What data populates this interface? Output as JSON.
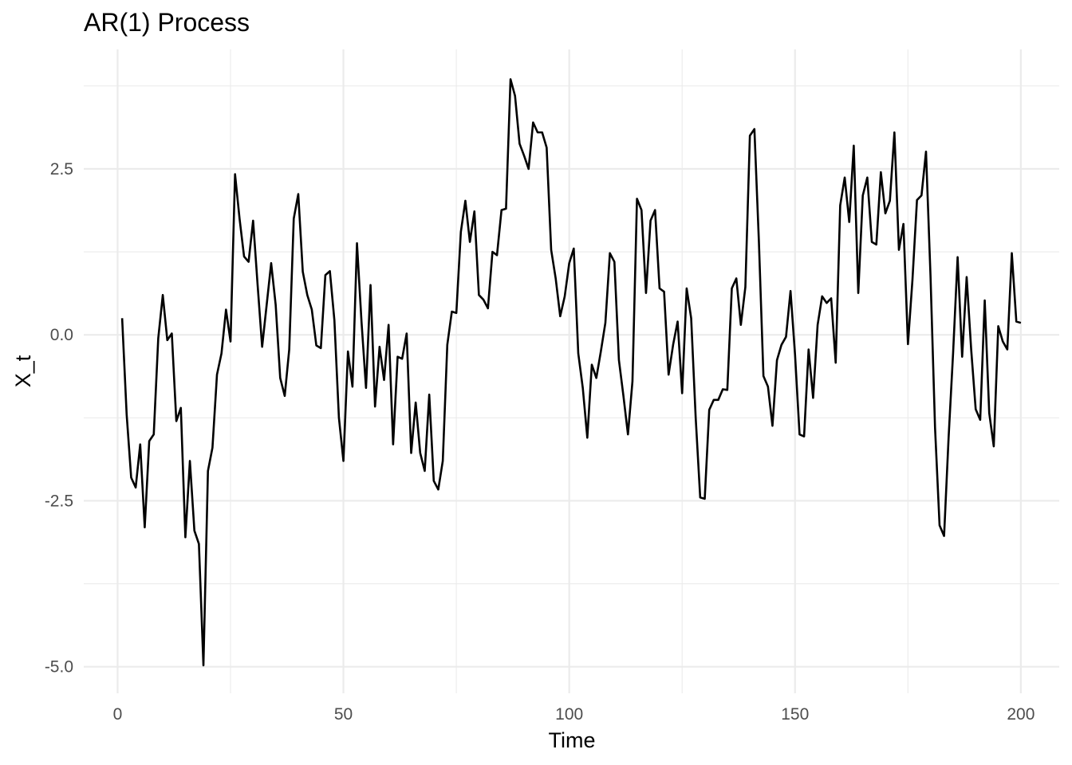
{
  "chart_data": {
    "type": "line",
    "title": "AR(1) Process",
    "xlabel": "Time",
    "ylabel": "X_t",
    "xlim": [
      -7.5,
      208.5
    ],
    "ylim": [
      -5.4,
      4.3
    ],
    "grid": true,
    "x_ticks": [
      0,
      50,
      100,
      150,
      200
    ],
    "x_tick_labels": [
      "0",
      "50",
      "100",
      "150",
      "200"
    ],
    "x_minor_ticks": [
      25,
      75,
      125,
      175
    ],
    "y_ticks": [
      -5.0,
      -2.5,
      0.0,
      2.5
    ],
    "y_tick_labels": [
      "-5.0",
      "-2.5",
      "0.0",
      "2.5"
    ],
    "y_minor_ticks": [
      -3.75,
      -1.25,
      1.25,
      3.75
    ],
    "series": [
      {
        "color": "#000000",
        "x": [
          1,
          2,
          3,
          4,
          5,
          6,
          7,
          8,
          9,
          10,
          11,
          12,
          13,
          14,
          15,
          16,
          17,
          18,
          19,
          20,
          21,
          22,
          23,
          24,
          25,
          26,
          27,
          28,
          29,
          30,
          31,
          32,
          33,
          34,
          35,
          36,
          37,
          38,
          39,
          40,
          41,
          42,
          43,
          44,
          45,
          46,
          47,
          48,
          49,
          50,
          51,
          52,
          53,
          54,
          55,
          56,
          57,
          58,
          59,
          60,
          61,
          62,
          63,
          64,
          65,
          66,
          67,
          68,
          69,
          70,
          71,
          72,
          73,
          74,
          75,
          76,
          77,
          78,
          79,
          80,
          81,
          82,
          83,
          84,
          85,
          86,
          87,
          88,
          89,
          90,
          91,
          92,
          93,
          94,
          95,
          96,
          97,
          98,
          99,
          100,
          101,
          102,
          103,
          104,
          105,
          106,
          107,
          108,
          109,
          110,
          111,
          112,
          113,
          114,
          115,
          116,
          117,
          118,
          119,
          120,
          121,
          122,
          123,
          124,
          125,
          126,
          127,
          128,
          129,
          130,
          131,
          132,
          133,
          134,
          135,
          136,
          137,
          138,
          139,
          140,
          141,
          142,
          143,
          144,
          145,
          146,
          147,
          148,
          149,
          150,
          151,
          152,
          153,
          154,
          155,
          156,
          157,
          158,
          159,
          160,
          161,
          162,
          163,
          164,
          165,
          166,
          167,
          168,
          169,
          170,
          171,
          172,
          173,
          174,
          175,
          176,
          177,
          178,
          179,
          180,
          181,
          182,
          183,
          184,
          185,
          186,
          187,
          188,
          189,
          190,
          191,
          192,
          193,
          194,
          195,
          196,
          197,
          198,
          199,
          200
        ],
        "values": [
          0.25,
          -1.2,
          -2.15,
          -2.3,
          -1.65,
          -2.9,
          -1.6,
          -1.5,
          -0.05,
          0.6,
          -0.08,
          0.02,
          -1.3,
          -1.1,
          -3.05,
          -1.9,
          -2.95,
          -3.15,
          -4.98,
          -2.05,
          -1.7,
          -0.6,
          -0.28,
          0.38,
          -0.1,
          2.42,
          1.75,
          1.18,
          1.1,
          1.72,
          0.75,
          -0.18,
          0.45,
          1.08,
          0.45,
          -0.65,
          -0.92,
          -0.22,
          1.75,
          2.12,
          0.95,
          0.6,
          0.38,
          -0.16,
          -0.2,
          0.9,
          0.96,
          0.22,
          -1.25,
          -1.9,
          -0.25,
          -0.78,
          1.38,
          0.2,
          -0.8,
          0.75,
          -1.08,
          -0.18,
          -0.68,
          0.15,
          -1.65,
          -0.33,
          -0.36,
          0.02,
          -1.78,
          -1.02,
          -1.78,
          -2.05,
          -0.9,
          -2.2,
          -2.33,
          -1.9,
          -0.15,
          0.35,
          0.33,
          1.55,
          2.02,
          1.4,
          1.86,
          0.6,
          0.53,
          0.4,
          1.25,
          1.2,
          1.88,
          1.9,
          3.85,
          3.6,
          2.88,
          2.7,
          2.5,
          3.2,
          3.05,
          3.05,
          2.82,
          1.28,
          0.85,
          0.28,
          0.58,
          1.08,
          1.3,
          -0.28,
          -0.8,
          -1.55,
          -0.45,
          -0.65,
          -0.25,
          0.18,
          1.23,
          1.1,
          -0.38,
          -0.92,
          -1.5,
          -0.7,
          2.05,
          1.88,
          0.63,
          1.72,
          1.88,
          0.7,
          0.65,
          -0.6,
          -0.15,
          0.2,
          -0.88,
          0.7,
          0.25,
          -1.25,
          -2.45,
          -2.47,
          -1.13,
          -0.98,
          -0.98,
          -0.82,
          -0.83,
          0.7,
          0.85,
          0.15,
          0.72,
          3.0,
          3.1,
          1.4,
          -0.62,
          -0.78,
          -1.37,
          -0.38,
          -0.15,
          -0.03,
          0.66,
          -0.3,
          -1.5,
          -1.53,
          -0.22,
          -0.95,
          0.15,
          0.58,
          0.48,
          0.55,
          -0.42,
          1.95,
          2.37,
          1.7,
          2.85,
          0.63,
          2.1,
          2.37,
          1.4,
          1.36,
          2.45,
          1.83,
          2.02,
          3.05,
          1.28,
          1.67,
          -0.14,
          0.83,
          2.03,
          2.1,
          2.76,
          0.88,
          -1.4,
          -2.87,
          -3.03,
          -1.55,
          -0.27,
          1.17,
          -0.33,
          0.87,
          -0.22,
          -1.12,
          -1.28,
          0.52,
          -1.18,
          -1.68,
          0.13,
          -0.1,
          -0.22,
          1.23,
          0.2,
          0.18
        ]
      }
    ]
  }
}
